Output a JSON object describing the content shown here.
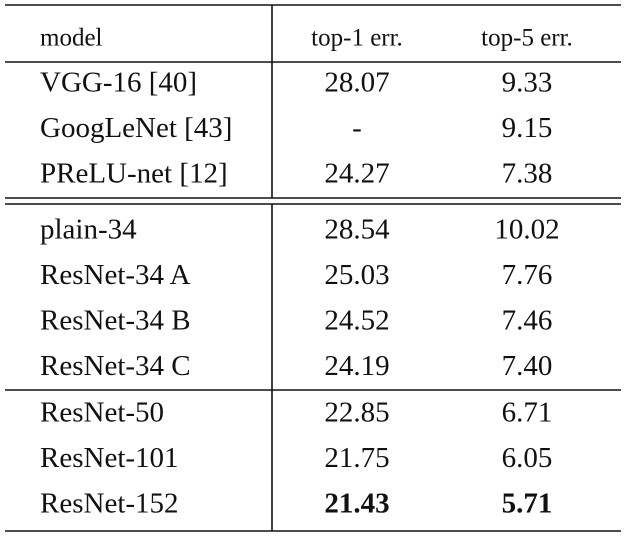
{
  "table": {
    "header": [
      "model",
      "top-1 err.",
      "top-5 err."
    ],
    "groups": [
      {
        "rows": [
          [
            "VGG-16 [40]",
            "28.07",
            "9.33"
          ],
          [
            "GoogLeNet [43]",
            "-",
            "9.15"
          ],
          [
            "PReLU-net [12]",
            "24.27",
            "7.38"
          ]
        ]
      },
      {
        "rows": [
          [
            "plain-34",
            "28.54",
            "10.02"
          ],
          [
            "ResNet-34 A",
            "25.03",
            "7.76"
          ],
          [
            "ResNet-34 B",
            "24.52",
            "7.46"
          ],
          [
            "ResNet-34 C",
            "24.19",
            "7.40"
          ]
        ]
      },
      {
        "rows": [
          [
            "ResNet-50",
            "22.85",
            "6.71"
          ],
          [
            "ResNet-101",
            "21.75",
            "6.05"
          ],
          [
            "ResNet-152",
            "21.43",
            "5.71"
          ]
        ]
      }
    ]
  }
}
